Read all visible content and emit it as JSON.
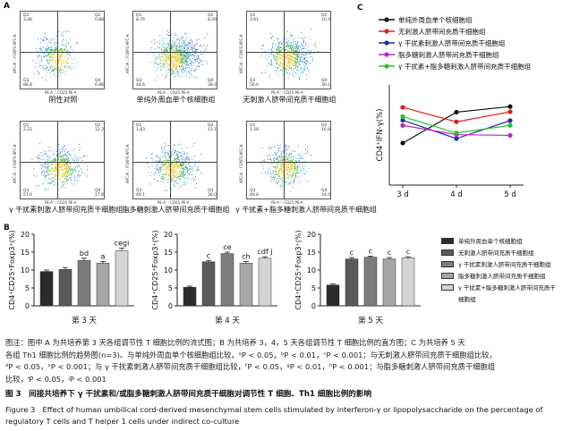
{
  "panelA": {
    "letter": "A",
    "x_axis_label": "PE-A :: CD25 PE-A",
    "y_axis_label": "APC-A :: FOXP3 APC-A",
    "plots": [
      {
        "caption": "阴性对照",
        "q1": "Q1",
        "q2": "Q2",
        "q3": "Q3",
        "q4": "Q4",
        "v1": "3.46",
        "v2": "0.88",
        "v3": "88.8",
        "v4": "6.86",
        "density": 0.35
      },
      {
        "caption": "单纯外周血单个核细胞组",
        "q1": "Q1",
        "q2": "Q2",
        "q3": "Q3",
        "q4": "Q4",
        "v1": "8.76",
        "v2": "8.29",
        "v3": "44.6",
        "v4": "38.4",
        "density": 0.9
      },
      {
        "caption": "无刺激人脐带间充质干细胞组",
        "q1": "Q1",
        "q2": "Q2",
        "q3": "Q3",
        "q4": "Q4",
        "v1": "3.61",
        "v2": "10.3",
        "v3": "56.0",
        "v4": "30.1",
        "density": 0.75
      },
      {
        "caption": "γ 干扰素刺激人脐带间充质干细胞组",
        "q1": "Q1",
        "q2": "Q2",
        "q3": "Q3",
        "q4": "Q4",
        "v1": "2.22",
        "v2": "12.2",
        "v3": "57.0",
        "v4": "27.8",
        "density": 0.6
      },
      {
        "caption": "脂多糖刺激人脐带间充质干细胞组",
        "q1": "Q1",
        "q2": "Q2",
        "q3": "Q3",
        "q4": "Q4",
        "v1": "1.83",
        "v2": "13.1",
        "v3": "49.1",
        "v4": "36.0",
        "density": 0.65
      },
      {
        "caption": "γ 干扰素+脂多糖刺激人脐带间充质干细胞组",
        "q1": "Q1",
        "q2": "Q2",
        "q3": "Q3",
        "q4": "Q4",
        "v1": "1.58",
        "v2": "16.8",
        "v3": "49.8",
        "v4": "34.0",
        "density": 0.55
      }
    ]
  },
  "chart_data": [
    {
      "type": "bar",
      "panel": "B",
      "title": "第 3 天",
      "ylabel": "CD4⁺CD25⁺Foxp3⁺(%)",
      "ylim": [
        0,
        20
      ],
      "yticks": [
        "0",
        "5",
        "10",
        "15",
        "20"
      ],
      "categories": [
        "单纯外周血单个核细胞组",
        "无刺激人脐带间充质干细胞组",
        "γ 干扰素刺激人脐带间充质干细胞组",
        "脂多糖刺激人脐带间充质干细胞组",
        "γ 干扰素+脂多糖刺激人脐带间充质干细胞组"
      ],
      "values": [
        9.6,
        10.2,
        12.7,
        11.9,
        15.4
      ],
      "errors": [
        0.4,
        0.5,
        0.6,
        0.5,
        0.7
      ],
      "labels": [
        "",
        "",
        "bd",
        "a",
        "cegi"
      ],
      "colors": [
        "#2b2b2b",
        "#5a5a5a",
        "#7d7d7d",
        "#a6a6a6",
        "#d4d4d4"
      ]
    },
    {
      "type": "bar",
      "panel": "B",
      "title": "第 4 天",
      "ylabel": "CD4⁺CD25⁺Foxp3⁺(%)",
      "ylim": [
        0,
        20
      ],
      "yticks": [
        "0",
        "5",
        "10",
        "15",
        "20"
      ],
      "categories": [
        "单纯外周血单个核细胞组",
        "无刺激人脐带间充质干细胞组",
        "γ 干扰素刺激人脐带间充质干细胞组",
        "脂多糖刺激人脐带间充质干细胞组",
        "γ 干扰素+脂多糖刺激人脐带间充质干细胞组"
      ],
      "values": [
        5.2,
        12.3,
        14.6,
        11.9,
        13.3
      ],
      "errors": [
        0.3,
        0.3,
        0.4,
        0.5,
        0.4
      ],
      "labels": [
        "",
        "c",
        "ce",
        "ch",
        "cdf j"
      ],
      "colors": [
        "#2b2b2b",
        "#5a5a5a",
        "#7d7d7d",
        "#a6a6a6",
        "#d4d4d4"
      ]
    },
    {
      "type": "bar",
      "panel": "B",
      "title": "第 5 天",
      "ylabel": "CD4⁺CD25⁺Foxp3⁺(%)",
      "ylim": [
        0,
        20
      ],
      "yticks": [
        "0",
        "5",
        "10",
        "15",
        "20"
      ],
      "categories": [
        "单纯外周血单个核细胞组",
        "无刺激人脐带间充质干细胞组",
        "γ 干扰素刺激人脐带间充质干细胞组",
        "脂多糖刺激人脐带间充质干细胞组",
        "γ 干扰素+脂多糖刺激人脐带间充质干细胞组"
      ],
      "values": [
        5.8,
        13.1,
        13.6,
        13.1,
        13.4
      ],
      "errors": [
        0.3,
        0.4,
        0.3,
        0.4,
        0.3
      ],
      "labels": [
        "",
        "c",
        "c",
        "c",
        "c"
      ],
      "colors": [
        "#2b2b2b",
        "#5a5a5a",
        "#7d7d7d",
        "#a6a6a6",
        "#d4d4d4"
      ]
    },
    {
      "type": "line",
      "panel": "C",
      "title": "",
      "ylabel": "CD4⁺IFN-γ(%)",
      "ylim": [
        0,
        25
      ],
      "x": [
        "3 d",
        "4 d",
        "5 d"
      ],
      "series": [
        {
          "name": "单纯外周血单个核细胞组",
          "values": [
            10.5,
            18.2,
            19.6
          ],
          "color": "#111111"
        },
        {
          "name": "无刺激人脐带间充质干细胞组",
          "values": [
            19.4,
            15.8,
            18.3
          ],
          "color": "#e0201a"
        },
        {
          "name": "γ 干扰素刺激人脐带间充质干细胞组",
          "values": [
            16.2,
            11.6,
            16.1
          ],
          "color": "#1f2fa8"
        },
        {
          "name": "脂多糖刺激人脐带间充质干细胞组",
          "values": [
            14.9,
            12.6,
            12.4
          ],
          "color": "#c021c8"
        },
        {
          "name": "γ 干扰素+脂多糖刺激人脐带间充质干细胞组",
          "values": [
            17.1,
            13.0,
            14.9
          ],
          "color": "#2fbf2f"
        }
      ]
    }
  ],
  "panelB": {
    "letter": "B"
  },
  "panelC": {
    "letter": "C"
  },
  "legend": [
    {
      "label": "单纯外周血单个核细胞组",
      "color": "#2b2b2b"
    },
    {
      "label": "无刺激人脐带间充质干细胞组",
      "color": "#5a5a5a"
    },
    {
      "label": "γ 干扰素刺激人脐带间充质干细胞组",
      "color": "#7d7d7d"
    },
    {
      "label": "脂多糖刺激人脐带间充质干细胞组",
      "color": "#a6a6a6"
    },
    {
      "label": "γ 干扰素+脂多糖刺激人脐带间充质干",
      "color": "#d4d4d4"
    },
    {
      "label": "细胞组",
      "color": ""
    }
  ],
  "notes": [
    "图注：图中 A 为共培养第 3 天各组调节性 T 细胞比例的流式图；B 为共培养 3，4，5 天各组调节性 T 细胞比例的直方图；C 为共培养 5 天",
    "各组 Th1 细胞比例的趋势图(n=3)。与单纯外周血单个核细胞组比较，ᵃP < 0.05，ᵇP < 0.01，ᶜP < 0.001；与无刺激人脐带间充质干细胞组比较，",
    "ᵈP < 0.05，ᵉP < 0.001；与 γ 干扰素刺激人脐带间充质干细胞组比较，ᶠP < 0.05，ᵍP < 0.01，ʰP < 0.001；与脂多糖刺激人脐带间充质干细胞组",
    "比较，ⁱP < 0.05，ʲP < 0.001"
  ],
  "caption_cn": "图 3　间接共培养下 γ 干扰素和/或脂多糖刺激人脐带间充质干细胞对调节性 T 细胞、Th1 细胞比例的影响",
  "caption_en": "Figure 3　Effect of human umbilical cord-derived mesenchymal stem cells stimulated by interferon-γ or lipopolysaccharide on the percentage of regulatory T cells and T helper 1 cells under indirect co-culture"
}
